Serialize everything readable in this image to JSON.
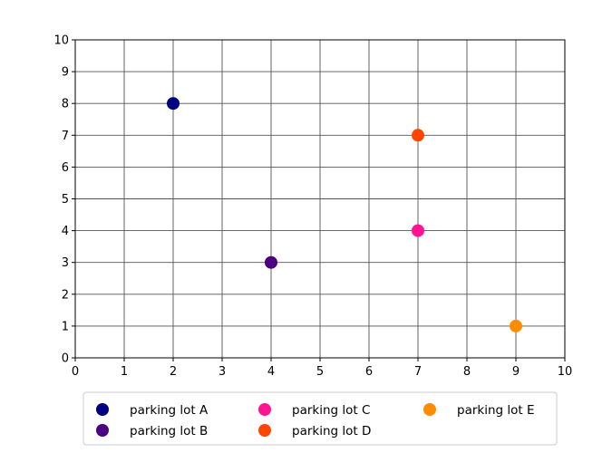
{
  "chart_data": {
    "type": "scatter",
    "title": "",
    "xlabel": "",
    "ylabel": "",
    "xlim": [
      0,
      10
    ],
    "ylim": [
      0,
      10
    ],
    "xticks": [
      "0",
      "1",
      "2",
      "3",
      "4",
      "5",
      "6",
      "7",
      "8",
      "9",
      "10"
    ],
    "yticks": [
      "0",
      "1",
      "2",
      "3",
      "4",
      "5",
      "6",
      "7",
      "8",
      "9",
      "10"
    ],
    "grid": true,
    "legend_position": "bottom-center",
    "legend_columns": 3,
    "series": [
      {
        "name": "parking lot A",
        "color": "#000080",
        "points": [
          {
            "x": 2,
            "y": 8
          }
        ]
      },
      {
        "name": "parking lot B",
        "color": "#4B0082",
        "points": [
          {
            "x": 4,
            "y": 3
          }
        ]
      },
      {
        "name": "parking lot C",
        "color": "#FF1493",
        "points": [
          {
            "x": 7,
            "y": 4
          }
        ]
      },
      {
        "name": "parking lot D",
        "color": "#FF4500",
        "points": [
          {
            "x": 7,
            "y": 7
          }
        ]
      },
      {
        "name": "parking lot E",
        "color": "#FF8C00",
        "points": [
          {
            "x": 9,
            "y": 1
          }
        ]
      }
    ]
  }
}
